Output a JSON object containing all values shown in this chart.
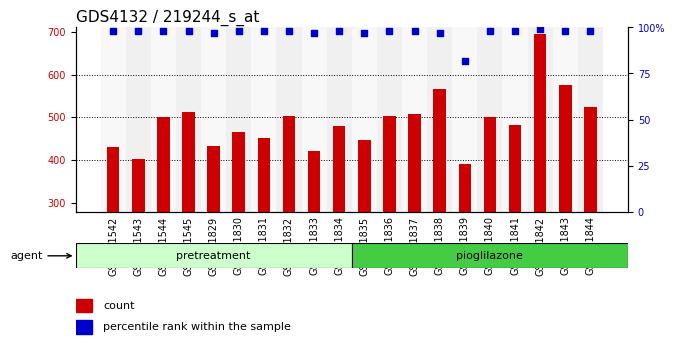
{
  "title": "GDS4132 / 219244_s_at",
  "categories": [
    "GSM201542",
    "GSM201543",
    "GSM201544",
    "GSM201545",
    "GSM201829",
    "GSM201830",
    "GSM201831",
    "GSM201832",
    "GSM201833",
    "GSM201834",
    "GSM201835",
    "GSM201836",
    "GSM201837",
    "GSM201838",
    "GSM201839",
    "GSM201840",
    "GSM201841",
    "GSM201842",
    "GSM201843",
    "GSM201844"
  ],
  "bar_values": [
    430,
    402,
    502,
    512,
    432,
    467,
    452,
    504,
    422,
    481,
    448,
    504,
    507,
    567,
    390,
    500,
    482,
    695,
    576,
    524
  ],
  "percentile_values": [
    98,
    98,
    98,
    98,
    97,
    98,
    98,
    98,
    97,
    98,
    97,
    98,
    98,
    97,
    82,
    98,
    98,
    99,
    98,
    98
  ],
  "bar_color": "#cc0000",
  "dot_color": "#0000cc",
  "ylim_left": [
    280,
    710
  ],
  "ylim_right": [
    0,
    100
  ],
  "yticks_left": [
    300,
    400,
    500,
    600,
    700
  ],
  "yticks_right": [
    0,
    25,
    50,
    75,
    100
  ],
  "group1_label": "pretreatment",
  "group1_count": 10,
  "group2_label": "pioglilazone",
  "group2_count": 10,
  "group1_color": "#ccffcc",
  "group2_color": "#44cc44",
  "agent_label": "agent",
  "legend_count_label": "count",
  "legend_pct_label": "percentile rank within the sample",
  "grid_color": "#000000",
  "bg_color": "#f0f0f0",
  "title_fontsize": 11,
  "tick_fontsize": 7,
  "label_fontsize": 8
}
